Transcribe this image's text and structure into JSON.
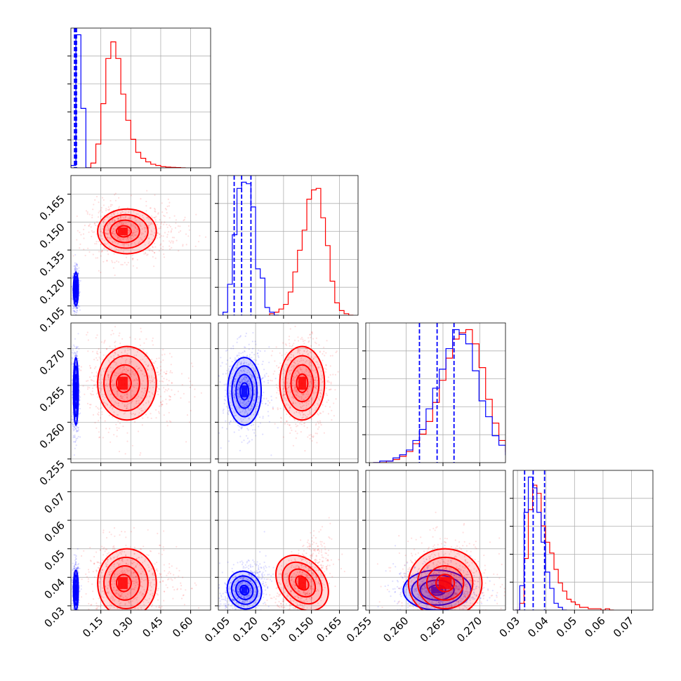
{
  "chart_data": {
    "type": "corner",
    "description_colors": {
      "blue": "#0000ff",
      "red": "#ff0000"
    },
    "parameters": [
      {
        "ticks": [
          "0.15",
          "0.30",
          "0.45",
          "0.60"
        ],
        "tick_values": [
          0.15,
          0.3,
          0.45,
          0.6
        ],
        "range": [
          0.0,
          0.7
        ]
      },
      {
        "ticks": [
          "0.105",
          "0.120",
          "0.135",
          "0.150",
          "0.165"
        ],
        "tick_values": [
          0.105,
          0.12,
          0.135,
          0.15,
          0.165
        ],
        "range": [
          0.1,
          0.175
        ]
      },
      {
        "ticks": [
          "0.255",
          "0.260",
          "0.265",
          "0.270"
        ],
        "tick_values": [
          0.255,
          0.26,
          0.265,
          0.27
        ],
        "range": [
          0.2545,
          0.2735
        ]
      },
      {
        "ticks": [
          "0.03",
          "0.04",
          "0.05",
          "0.06",
          "0.07"
        ],
        "tick_values": [
          0.03,
          0.04,
          0.05,
          0.06,
          0.07
        ],
        "range": [
          0.0285,
          0.0775
        ]
      }
    ],
    "series": [
      {
        "color": "#0000ff",
        "mean": [
          0.025,
          0.114,
          0.2642,
          0.0355
        ],
        "sd": [
          0.006,
          0.0045,
          0.0023,
          0.0035
        ],
        "quantiles": [
          [
            0.018,
            0.022,
            0.028
          ],
          [
            0.1085,
            0.1125,
            0.1175
          ],
          [
            0.2618,
            0.2642,
            0.2665
          ],
          [
            0.0325,
            0.0355,
            0.0395
          ]
        ]
      },
      {
        "color": "#ff0000",
        "mean": [
          0.26,
          0.145,
          0.2653,
          0.038
        ],
        "sd": [
          0.07,
          0.006,
          0.0025,
          0.006
        ],
        "quantiles": []
      }
    ],
    "histograms": [
      {
        "param": 0,
        "blue": {
          "start": 0.0,
          "width": 0.025,
          "heights": [
            0.01,
            0.56,
            0.25,
            0.0
          ]
        },
        "red": {
          "start": 0.075,
          "width": 0.025,
          "heights": [
            0.0,
            0.02,
            0.1,
            0.27,
            0.46,
            0.53,
            0.46,
            0.31,
            0.2,
            0.12,
            0.065,
            0.04,
            0.025,
            0.015,
            0.01,
            0.005,
            0.003,
            0.002,
            0.001,
            0.0
          ]
        }
      },
      {
        "param": 1,
        "blue": {
          "start": 0.1025,
          "width": 0.0025,
          "heights": [
            0.02,
            0.2,
            0.52,
            0.82,
            0.86,
            0.85,
            0.7,
            0.3,
            0.24,
            0.05,
            0.02,
            0.0
          ]
        },
        "red": {
          "start": 0.1275,
          "width": 0.0025,
          "heights": [
            0.01,
            0.02,
            0.04,
            0.07,
            0.15,
            0.28,
            0.42,
            0.55,
            0.75,
            0.81,
            0.82,
            0.63,
            0.45,
            0.22,
            0.08,
            0.03,
            0.01,
            0.0
          ]
        }
      },
      {
        "param": 2,
        "blue": {
          "start": 0.2555,
          "width": 0.0009,
          "heights": [
            0.0,
            0.01,
            0.01,
            0.03,
            0.05,
            0.08,
            0.14,
            0.21,
            0.34,
            0.47,
            0.59,
            0.72,
            0.84,
            0.81,
            0.75,
            0.58,
            0.39,
            0.29,
            0.17,
            0.11,
            0.05,
            0.02,
            0.01,
            0.0
          ]
        },
        "red": {
          "start": 0.2555,
          "width": 0.0009,
          "heights": [
            0.0,
            0.0,
            0.01,
            0.02,
            0.04,
            0.07,
            0.12,
            0.18,
            0.26,
            0.38,
            0.52,
            0.66,
            0.78,
            0.82,
            0.84,
            0.75,
            0.6,
            0.4,
            0.25,
            0.14,
            0.07,
            0.03,
            0.01,
            0.0
          ]
        }
      },
      {
        "param": 3,
        "blue": {
          "start": 0.0293,
          "width": 0.0015,
          "heights": [
            0.0,
            0.18,
            0.72,
            0.98,
            0.9,
            0.72,
            0.5,
            0.28,
            0.16,
            0.05,
            0.02,
            0.0
          ]
        },
        "red": {
          "start": 0.0293,
          "width": 0.0015,
          "heights": [
            0.0,
            0.05,
            0.38,
            0.74,
            0.92,
            0.86,
            0.62,
            0.5,
            0.42,
            0.3,
            0.2,
            0.14,
            0.08,
            0.06,
            0.04,
            0.02,
            0.02,
            0.01,
            0.01,
            0.01,
            0.0,
            0.01,
            0.0
          ]
        }
      }
    ],
    "correlations": {
      "blue": {
        "1-3": 0.35
      },
      "red": {
        "1-3": 0.55
      }
    },
    "contour_levels_sigma": [
      0.5,
      1.0,
      1.5,
      2.0
    ],
    "grid": true,
    "xlabel": "",
    "ylabel": "",
    "title": ""
  }
}
